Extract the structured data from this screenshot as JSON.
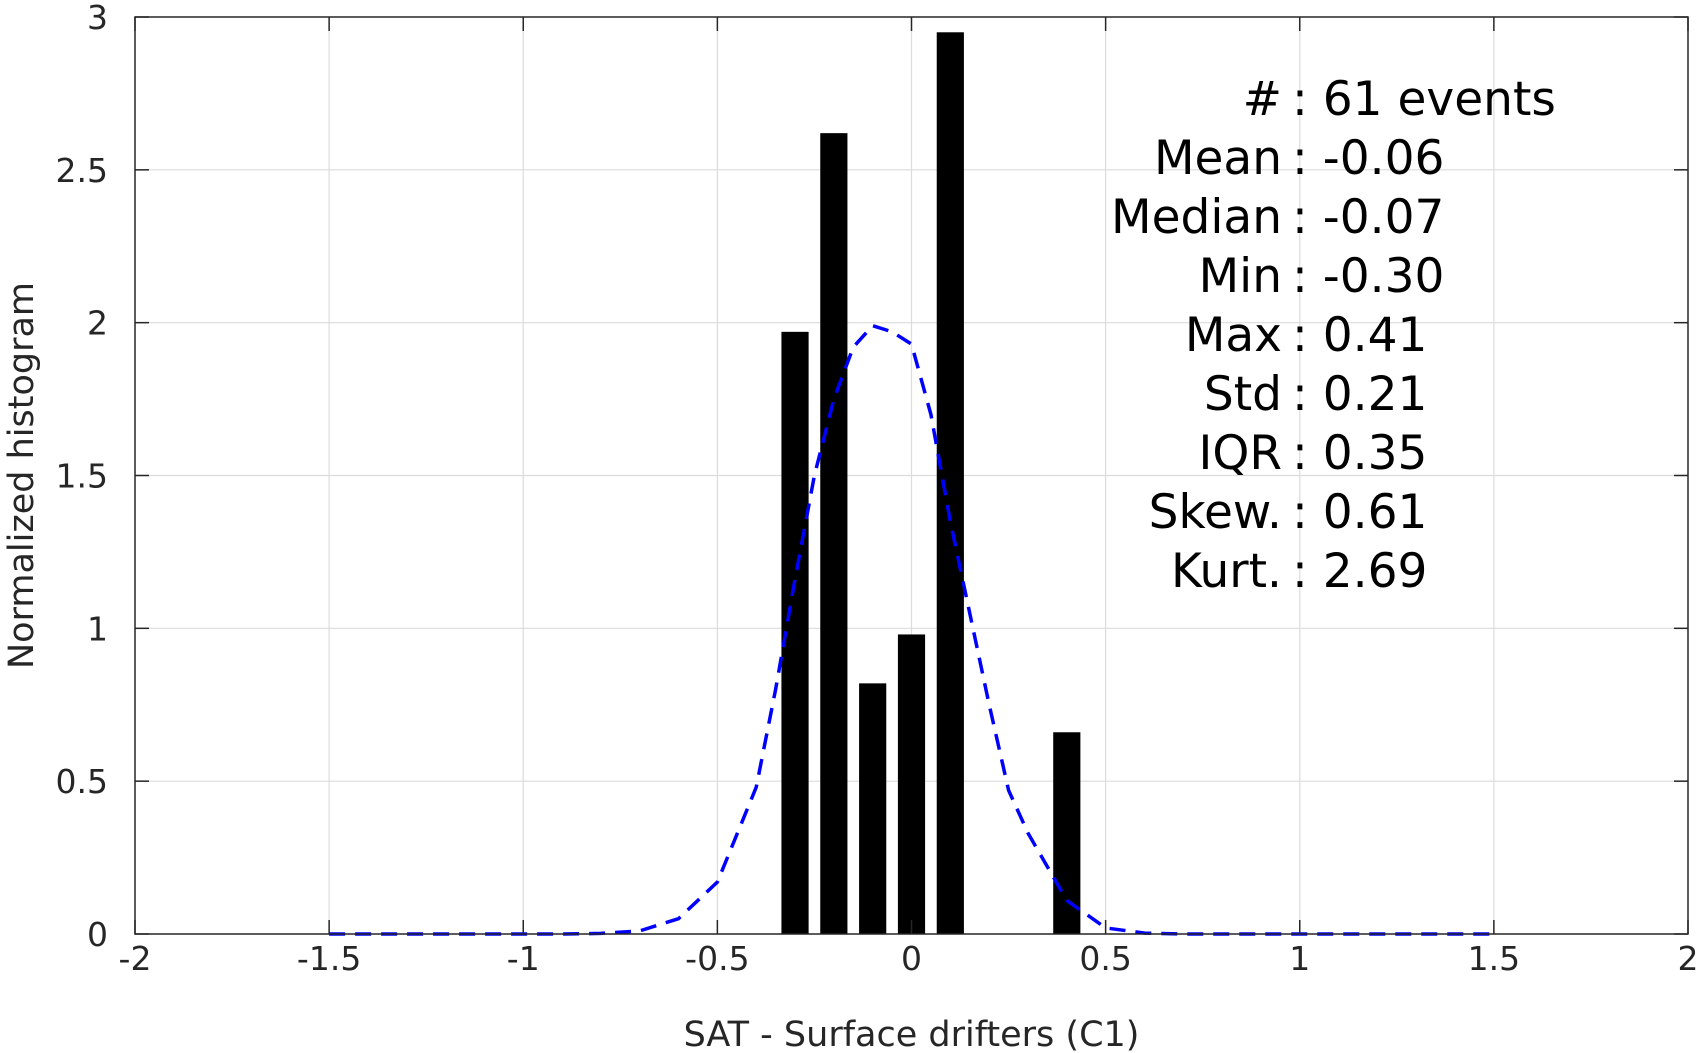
{
  "chart_data": {
    "type": "bar",
    "xlabel": "SAT - Surface drifters (C1)",
    "ylabel": "Normalized histogram",
    "xlim": [
      -2,
      2
    ],
    "ylim": [
      0,
      3
    ],
    "xticks": [
      -2,
      -1.5,
      -1,
      -0.5,
      0,
      0.5,
      1,
      1.5,
      2
    ],
    "xtick_labels": [
      "-2",
      "-1.5",
      "-1",
      "-0.5",
      "0",
      "0.5",
      "1",
      "1.5",
      "2"
    ],
    "yticks": [
      0,
      0.5,
      1,
      1.5,
      2,
      2.5,
      3
    ],
    "ytick_labels": [
      "0",
      "0.5",
      "1",
      "1.5",
      "2",
      "2.5",
      "3"
    ],
    "grid": true,
    "bar_width": 0.07,
    "bar_color": "#000000",
    "bars": [
      {
        "x": -0.3,
        "y": 1.97
      },
      {
        "x": -0.2,
        "y": 2.62
      },
      {
        "x": -0.1,
        "y": 0.82
      },
      {
        "x": 0.0,
        "y": 0.98
      },
      {
        "x": 0.1,
        "y": 2.95
      },
      {
        "x": 0.4,
        "y": 0.66
      }
    ],
    "fit_curve": {
      "style": "dashed",
      "color": "#0000ff",
      "x": [
        -1.5,
        -1.4,
        -1.3,
        -1.2,
        -1.1,
        -1.0,
        -0.9,
        -0.8,
        -0.7,
        -0.6,
        -0.5,
        -0.4,
        -0.35,
        -0.3,
        -0.25,
        -0.2,
        -0.15,
        -0.1,
        -0.05,
        0.0,
        0.05,
        0.1,
        0.15,
        0.2,
        0.25,
        0.3,
        0.4,
        0.5,
        0.6,
        0.7,
        0.8,
        0.9,
        1.0,
        1.1,
        1.2,
        1.3,
        1.4,
        1.5
      ],
      "y": [
        0,
        0,
        0,
        0,
        0,
        0,
        0,
        0.002,
        0.01,
        0.05,
        0.17,
        0.48,
        0.8,
        1.16,
        1.5,
        1.75,
        1.92,
        1.99,
        1.97,
        1.93,
        1.7,
        1.35,
        1.05,
        0.75,
        0.47,
        0.33,
        0.11,
        0.02,
        0.003,
        0,
        0,
        0,
        0,
        0,
        0,
        0,
        0,
        0
      ]
    },
    "stats": [
      {
        "label": "#  ",
        "value": ": 61 events"
      },
      {
        "label": "Mean",
        "value": ": -0.06"
      },
      {
        "label": "Median",
        "value": ": -0.07"
      },
      {
        "label": "Min",
        "value": ": -0.30"
      },
      {
        "label": "Max",
        "value": ": 0.41"
      },
      {
        "label": "Std",
        "value": ": 0.21"
      },
      {
        "label": "IQR",
        "value": ": 0.35"
      },
      {
        "label": "Skew.",
        "value": ": 0.61"
      },
      {
        "label": "Kurt.",
        "value": ": 2.69"
      }
    ]
  }
}
